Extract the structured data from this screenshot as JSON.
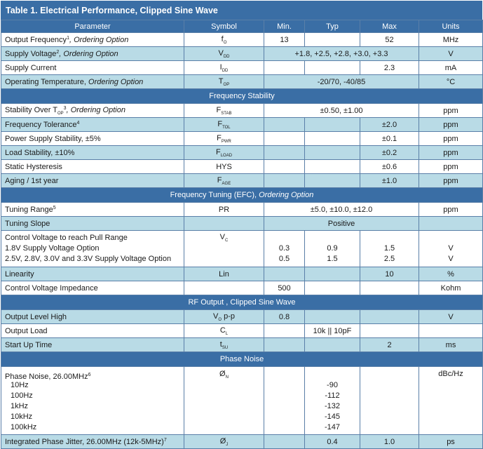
{
  "title": "Table 1. Electrical Performance, Clipped Sine Wave",
  "headers": [
    "Parameter",
    "Symbol",
    "Min.",
    "Typ",
    "Max",
    "Units"
  ],
  "sections": {
    "freq_stability": "Frequency Stability",
    "freq_tuning": "Frequency Tuning (EFC),",
    "freq_tuning_italic": "Ordering Option",
    "rf_output": "RF Output , Clipped Sine Wave",
    "phase_noise": "Phase Noise"
  },
  "rows": {
    "output_freq": {
      "param": "Output Frequency",
      "sup": "1",
      "opt": ", Ordering Option",
      "sym": "f",
      "sub": "O",
      "min": "13",
      "max": "52",
      "units": "MHz"
    },
    "supply_voltage": {
      "param": "Supply Voltage",
      "sup": "2",
      "opt": ", Ordering Option",
      "sym": "V",
      "sub": "DD",
      "span": "+1.8, +2.5, +2.8, +3.0, +3.3",
      "units": "V"
    },
    "supply_current": {
      "param": "Supply Current",
      "sym": "I",
      "sub": "DD",
      "max": "2.3",
      "units": "mA"
    },
    "operating_temp": {
      "param": "Operating Temperature,",
      "opt": " Ordering Option",
      "sym": "T",
      "sub": "OP",
      "span": "-20/70, -40/85",
      "units": "°C"
    },
    "stab_over_top": {
      "param": "Stability Over T",
      "psub": "OP",
      "sup": "3",
      "opt": ", Ordering Option",
      "sym": "F",
      "sub": "STAB",
      "span": "±0.50, ±1.00",
      "units": "ppm"
    },
    "freq_tolerance": {
      "param": "Frequency Tolerance",
      "sup": "4",
      "sym": "F",
      "sub": "TOL",
      "max": "±2.0",
      "units": "ppm"
    },
    "power_supply_stab": {
      "param": "Power Supply Stability, ±5%",
      "sym": "F",
      "sub": "PWR",
      "max": "±0.1",
      "units": "ppm"
    },
    "load_stab": {
      "param": "Load Stability, ±10%",
      "sym": "F",
      "sub": "LOAD",
      "max": "±0.2",
      "units": "ppm"
    },
    "static_hyst": {
      "param": "Static Hysteresis",
      "sym": "HYS",
      "max": "±0.6",
      "units": "ppm"
    },
    "aging": {
      "param": "Aging / 1st year",
      "sym": "F",
      "sub": "AGE",
      "max": "±1.0",
      "units": "ppm"
    },
    "tuning_range": {
      "param": "Tuning Range",
      "sup": "5",
      "sym": "PR",
      "span": "±5.0, ±10.0, ±12.0",
      "units": "ppm"
    },
    "tuning_slope": {
      "param": "Tuning Slope",
      "span": "Positive"
    },
    "control_voltage": {
      "param": "Control Voltage to reach Pull Range",
      "line2": "1.8V Supply Voltage Option",
      "line3": "2.5V, 2.8V, 3.0V and 3.3V Supply Voltage Option",
      "sym": "V",
      "sub": "C",
      "min2": "0.3",
      "typ2": "0.9",
      "max2": "1.5",
      "units2": "V",
      "min3": "0.5",
      "typ3": "1.5",
      "max3": "2.5",
      "units3": "V"
    },
    "linearity": {
      "param": "Linearity",
      "sym": "Lin",
      "max": "10",
      "units": "%"
    },
    "ctrl_impedance": {
      "param": "Control Voltage Impedance",
      "min": "500",
      "units": "Kohm"
    },
    "output_level": {
      "param": "Output Level High",
      "sym": "V",
      "sub": "O",
      "symtail": " p-p",
      "min": "0.8",
      "units": "V"
    },
    "output_load": {
      "param": "Output Load",
      "sym": "C",
      "sub": "L",
      "typ": "10k || 10pF"
    },
    "start_up": {
      "param": "Start Up Time",
      "sym": "t",
      "sub": "SU",
      "max": "2",
      "units": "ms"
    },
    "phase_noise": {
      "param": "Phase Noise, 26.00MHz",
      "sup": "6",
      "sym": "Ø",
      "sub": "N",
      "units": "dBc/Hz",
      "offsets": [
        "10Hz",
        "100Hz",
        "1kHz",
        "10kHz",
        "100kHz"
      ],
      "values": [
        "-90",
        "-112",
        "-132",
        "-145",
        "-147"
      ]
    },
    "phase_jitter": {
      "param": "Integrated Phase Jitter, 26.00MHz (12k-5MHz)",
      "sup": "7",
      "sym": "Ø",
      "sub": "J",
      "typ": "0.4",
      "max": "1.0",
      "units": "ps"
    }
  }
}
